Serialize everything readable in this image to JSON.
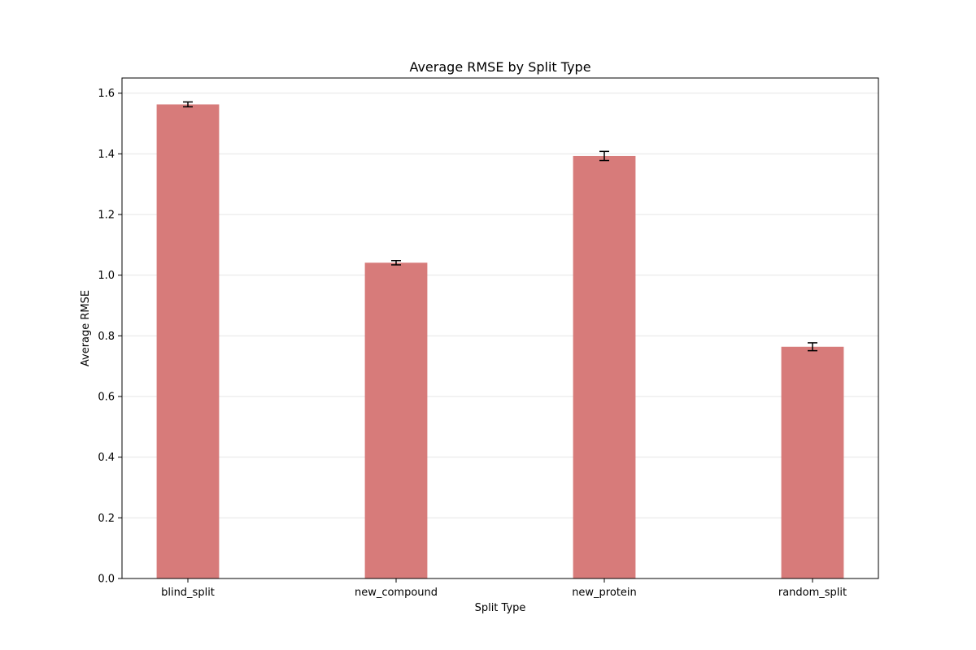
{
  "chart_data": {
    "type": "bar",
    "title": "Average RMSE by Split Type",
    "xlabel": "Split Type",
    "ylabel": "Average RMSE",
    "categories": [
      "blind_split",
      "new_compound",
      "new_protein",
      "random_split"
    ],
    "values": [
      1.563,
      1.041,
      1.393,
      0.764
    ],
    "errors": [
      0.008,
      0.007,
      0.015,
      0.013
    ],
    "ylim": [
      0.0,
      1.65
    ],
    "yticks": [
      0.0,
      0.2,
      0.4,
      0.6,
      0.8,
      1.0,
      1.2,
      1.4,
      1.6
    ],
    "ytick_labels": [
      "0.0",
      "0.2",
      "0.4",
      "0.6",
      "0.8",
      "1.0",
      "1.2",
      "1.4",
      "1.6"
    ],
    "grid": "y",
    "bar_color": "#d77b7a",
    "error_bar_color": "#000000"
  }
}
